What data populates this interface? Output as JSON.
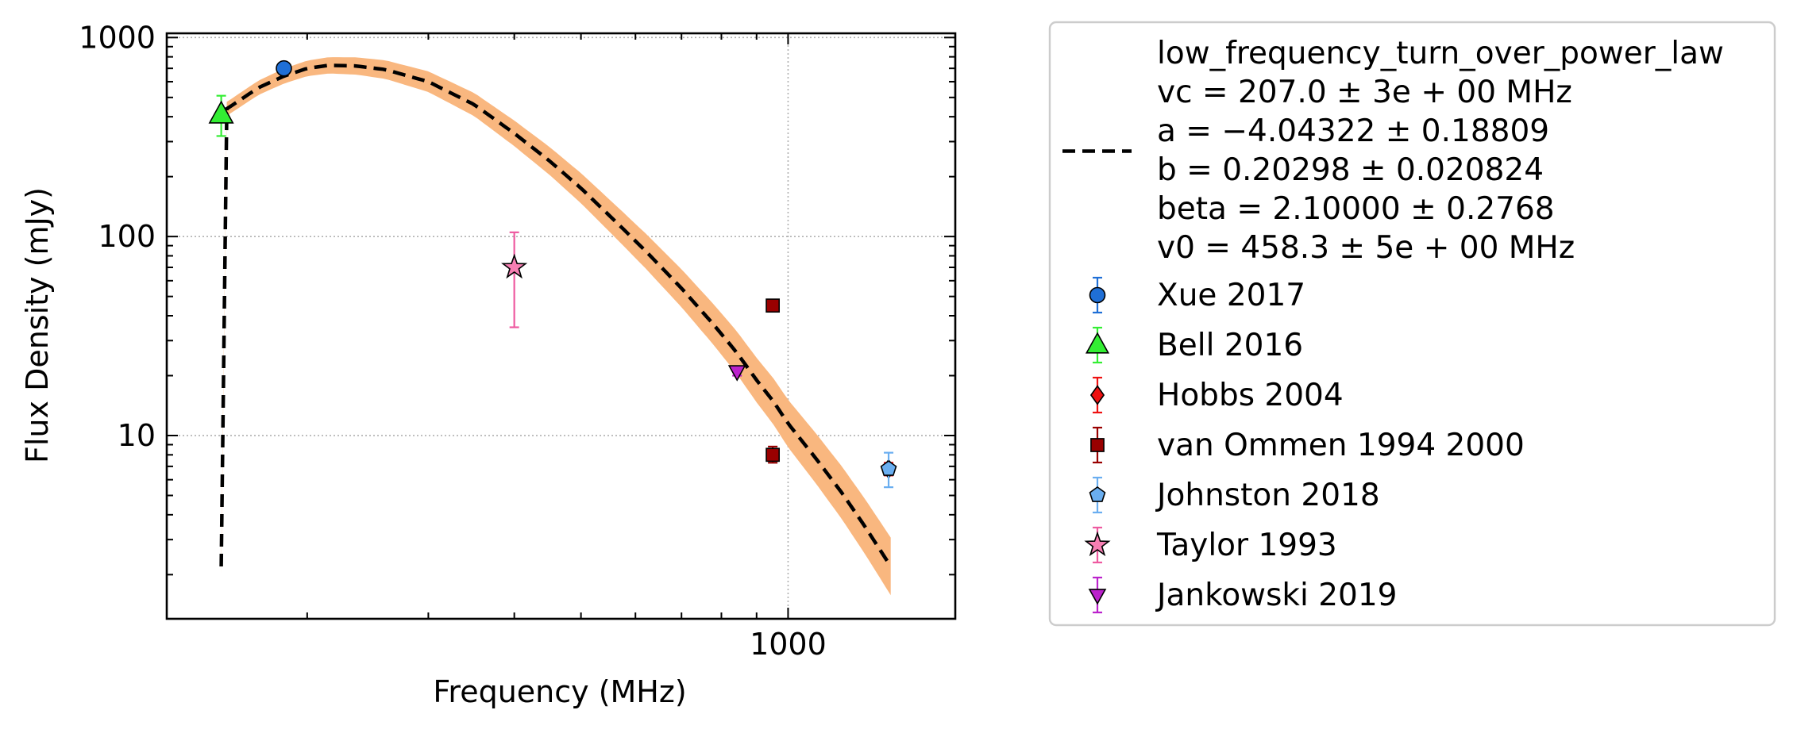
{
  "chart_data": {
    "type": "scatter",
    "xlabel": "Frequency (MHz)",
    "ylabel": "Flux Density (mJy)",
    "x_scale": "log",
    "y_scale": "log",
    "xlim": [
      125,
      1750
    ],
    "ylim": [
      1.2,
      1050
    ],
    "x_tick_labels": [
      {
        "value": 1000,
        "label": "1000"
      }
    ],
    "y_tick_labels": [
      {
        "value": 10,
        "label": "10"
      },
      {
        "value": 100,
        "label": "100"
      },
      {
        "value": 1000,
        "label": "1000"
      }
    ],
    "grid": true,
    "legend_position": "outside-right",
    "fit": {
      "model": "low_frequency_turn_over_power_law",
      "params_text": [
        "vc = 207.0 ± 3e + 00 MHz",
        "a = −4.04322 ± 0.18809",
        "b = 0.20298 ± 0.020824",
        "beta = 2.10000 ± 0.2768",
        "v0 = 458.3 ± 5e + 00 MHz"
      ],
      "params": {
        "vc": 207.0,
        "a": -4.04322,
        "b": 0.20298,
        "beta": 2.1,
        "v0": 458.3
      },
      "x_range": [
        150,
        1410
      ],
      "line_color": "#000000",
      "band_color": "#f9b77f"
    },
    "series": [
      {
        "name": "Xue 2017",
        "marker": "circle",
        "color": "#1f6fd6",
        "err_color": "#1f6fd6",
        "points": [
          {
            "x": 185,
            "y": 700,
            "y_low": 700,
            "y_high": 700
          }
        ]
      },
      {
        "name": "Bell 2016",
        "marker": "triangle-up",
        "color": "#33ee33",
        "err_color": "#33ee33",
        "points": [
          {
            "x": 150,
            "y": 410,
            "y_low": 320,
            "y_high": 510
          }
        ]
      },
      {
        "name": "Hobbs 2004",
        "marker": "diamond",
        "color": "#ee1111",
        "err_color": "#ee1111",
        "points": [
          {
            "x": 1400,
            "y": 6.8,
            "y_low": 6.3,
            "y_high": 7.3
          }
        ]
      },
      {
        "name": "van Ommen 1994 2000",
        "marker": "square",
        "color": "#990000",
        "err_color": "#990000",
        "points": [
          {
            "x": 950,
            "y": 45,
            "y_low": 43,
            "y_high": 47
          },
          {
            "x": 950,
            "y": 8.0,
            "y_low": 7.3,
            "y_high": 8.8
          }
        ]
      },
      {
        "name": "Johnston 2018",
        "marker": "pentagon",
        "color": "#6aaef0",
        "err_color": "#6aaef0",
        "points": [
          {
            "x": 1400,
            "y": 6.8,
            "y_low": 5.5,
            "y_high": 8.2
          }
        ]
      },
      {
        "name": "Taylor 1993",
        "marker": "star",
        "color": "#f77fb3",
        "err_color": "#ee5aa0",
        "points": [
          {
            "x": 400,
            "y": 70,
            "y_low": 35,
            "y_high": 105
          }
        ]
      },
      {
        "name": "Jankowski 2019",
        "marker": "triangle-down",
        "color": "#bb22cc",
        "err_color": "#bb22cc",
        "points": [
          {
            "x": 843,
            "y": 21,
            "y_low": 20,
            "y_high": 22
          }
        ]
      }
    ]
  }
}
